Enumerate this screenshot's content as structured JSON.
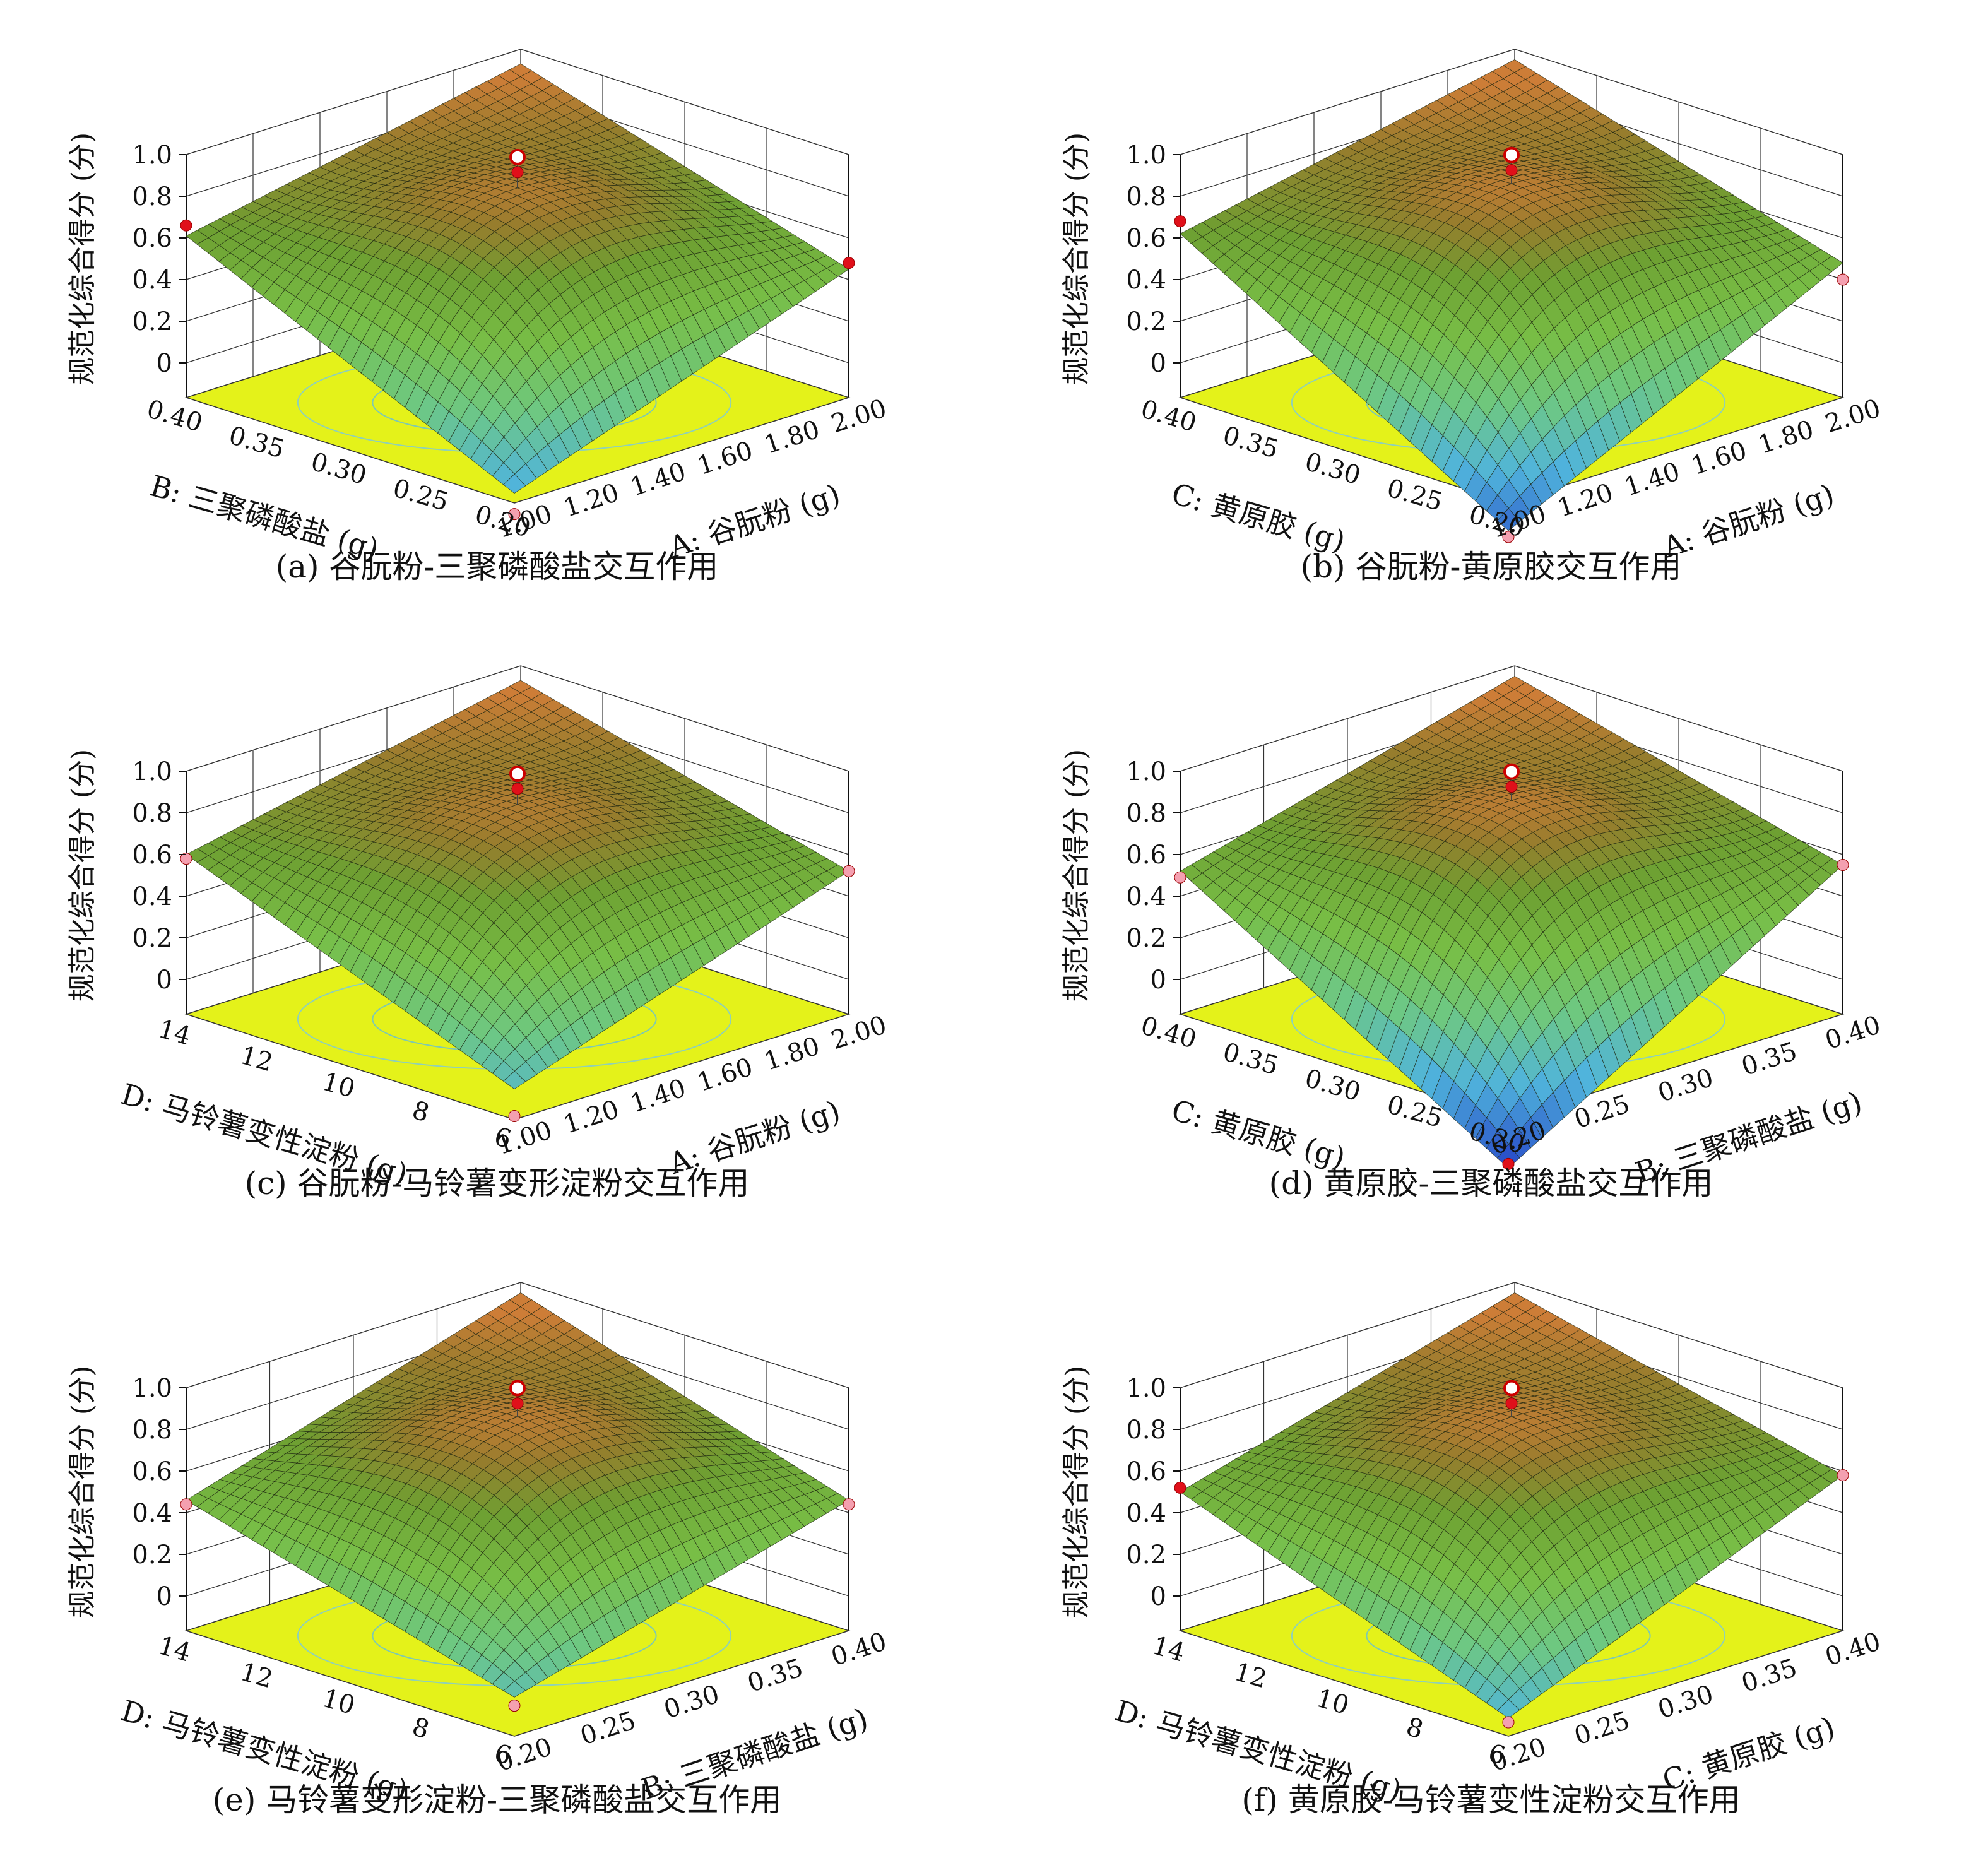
{
  "figure": {
    "panels": [
      {
        "id": "a",
        "caption": "(a) 谷朊粉-三聚磷酸盐交互作用",
        "zlabel": "规范化综合得分 (分)",
        "xlabel": "A: 谷朊粉 (g)",
        "ylabel": "B: 三聚磷酸盐 (g)",
        "xticks": [
          "1.00",
          "1.20",
          "1.40",
          "1.60",
          "1.80",
          "2.00"
        ],
        "yticks": [
          "0.20",
          "0.25",
          "0.30",
          "0.35",
          "0.40"
        ],
        "zticks": [
          "0",
          "0.2",
          "0.4",
          "0.6",
          "0.8",
          "1.0"
        ]
      },
      {
        "id": "b",
        "caption": "(b) 谷朊粉-黄原胶交互作用",
        "zlabel": "规范化综合得分 (分)",
        "xlabel": "A: 谷朊粉 (g)",
        "ylabel": "C: 黄原胶 (g)",
        "xticks": [
          "1.00",
          "1.20",
          "1.40",
          "1.60",
          "1.80",
          "2.00"
        ],
        "yticks": [
          "0.20",
          "0.25",
          "0.30",
          "0.35",
          "0.40"
        ],
        "zticks": [
          "0",
          "0.2",
          "0.4",
          "0.6",
          "0.8",
          "1.0"
        ]
      },
      {
        "id": "c",
        "caption": "(c) 谷朊粉-马铃薯变形淀粉交互作用",
        "zlabel": "规范化综合得分 (分)",
        "xlabel": "A: 谷朊粉 (g)",
        "ylabel": "D: 马铃薯变性淀粉 (g)",
        "xticks": [
          "1.00",
          "1.20",
          "1.40",
          "1.60",
          "1.80",
          "2.00"
        ],
        "yticks": [
          "6",
          "8",
          "10",
          "12",
          "14"
        ],
        "zticks": [
          "0",
          "0.2",
          "0.4",
          "0.6",
          "0.8",
          "1.0"
        ]
      },
      {
        "id": "d",
        "caption": "(d) 黄原胶-三聚磷酸盐交互作用",
        "zlabel": "规范化综合得分 (分)",
        "xlabel": "B: 三聚磷酸盐 (g)",
        "ylabel": "C: 黄原胶 (g)",
        "xticks": [
          "0.20",
          "0.25",
          "0.30",
          "0.35",
          "0.40"
        ],
        "yticks": [
          "0.20",
          "0.25",
          "0.30",
          "0.35",
          "0.40"
        ],
        "zticks": [
          "0",
          "0.2",
          "0.4",
          "0.6",
          "0.8",
          "1.0"
        ]
      },
      {
        "id": "e",
        "caption": "(e) 马铃薯变形淀粉-三聚磷酸盐交互作用",
        "zlabel": "规范化综合得分 (分)",
        "xlabel": "B: 三聚磷酸盐 (g)",
        "ylabel": "D: 马铃薯变性淀粉 (g)",
        "xticks": [
          "0.20",
          "0.25",
          "0.30",
          "0.35",
          "0.40"
        ],
        "yticks": [
          "6",
          "8",
          "10",
          "12",
          "14"
        ],
        "zticks": [
          "0",
          "0.2",
          "0.4",
          "0.6",
          "0.8",
          "1.0"
        ]
      },
      {
        "id": "f",
        "caption": "(f) 黄原胶-马铃薯变性淀粉交互作用",
        "zlabel": "规范化综合得分 (分)",
        "xlabel": "C: 黄原胶 (g)",
        "ylabel": "D: 马铃薯变性淀粉 (g)",
        "xticks": [
          "0.20",
          "0.25",
          "0.30",
          "0.35",
          "0.40"
        ],
        "yticks": [
          "6",
          "8",
          "10",
          "12",
          "14"
        ],
        "zticks": [
          "0",
          "0.2",
          "0.4",
          "0.6",
          "0.8",
          "1.0"
        ]
      }
    ]
  },
  "chart_data": [
    {
      "type": "surface3d",
      "title": "(a) 谷朊粉-三聚磷酸盐交互作用",
      "xlabel": "A: 谷朊粉 (g)",
      "ylabel": "B: 三聚磷酸盐 (g)",
      "zlabel": "规范化综合得分 (分)",
      "xlim": [
        1.0,
        2.0
      ],
      "ylim": [
        0.2,
        0.4
      ],
      "zlim": [
        0,
        1.0
      ],
      "surface": {
        "max": 0.84,
        "corner_near": -0.12,
        "corner_left": 0.61,
        "corner_right": 0.45,
        "corner_back": 0.93
      },
      "design_points": [
        {
          "x": 1.0,
          "y": 0.4,
          "z": 0.66
        },
        {
          "x": 2.0,
          "y": 0.2,
          "z": 0.48
        },
        {
          "x": 1.0,
          "y": 0.2,
          "z": -0.22
        },
        {
          "x": 1.5,
          "y": 0.3,
          "z": 0.97
        }
      ]
    },
    {
      "type": "surface3d",
      "title": "(b) 谷朊粉-黄原胶交互作用",
      "xlabel": "A: 谷朊粉 (g)",
      "ylabel": "C: 黄原胶 (g)",
      "zlabel": "规范化综合得分 (分)",
      "xlim": [
        1.0,
        2.0
      ],
      "ylim": [
        0.2,
        0.4
      ],
      "zlim": [
        0,
        1.0
      ],
      "surface": {
        "max": 0.86,
        "corner_near": -0.3,
        "corner_left": 0.62,
        "corner_right": 0.48,
        "corner_back": 0.95
      },
      "design_points": [
        {
          "x": 1.0,
          "y": 0.4,
          "z": 0.68
        },
        {
          "x": 2.0,
          "y": 0.2,
          "z": 0.4
        },
        {
          "x": 1.0,
          "y": 0.2,
          "z": -0.33
        },
        {
          "x": 1.5,
          "y": 0.3,
          "z": 0.98
        }
      ]
    },
    {
      "type": "surface3d",
      "title": "(c) 谷朊粉-马铃薯变形淀粉交互作用",
      "xlabel": "A: 谷朊粉 (g)",
      "ylabel": "D: 马铃薯变性淀粉 (g)",
      "zlabel": "规范化综合得分 (分)",
      "xlim": [
        1.0,
        2.0
      ],
      "ylim": [
        6,
        14
      ],
      "zlim": [
        0,
        1.0
      ],
      "surface": {
        "max": 0.84,
        "corner_near": -0.02,
        "corner_left": 0.6,
        "corner_right": 0.52,
        "corner_back": 0.93
      },
      "design_points": [
        {
          "x": 1.0,
          "y": 14,
          "z": 0.58
        },
        {
          "x": 2.0,
          "y": 6,
          "z": 0.52
        },
        {
          "x": 1.0,
          "y": 6,
          "z": -0.15
        },
        {
          "x": 1.5,
          "y": 10,
          "z": 0.97
        }
      ]
    },
    {
      "type": "surface3d",
      "title": "(d) 黄原胶-三聚磷酸盐交互作用",
      "xlabel": "B: 三聚磷酸盐 (g)",
      "ylabel": "C: 黄原胶 (g)",
      "zlabel": "规范化综合得分 (分)",
      "xlim": [
        0.2,
        0.4
      ],
      "ylim": [
        0.2,
        0.4
      ],
      "zlim": [
        0,
        1.0
      ],
      "surface": {
        "max": 0.86,
        "corner_near": -0.4,
        "corner_left": 0.52,
        "corner_right": 0.55,
        "corner_back": 0.95
      },
      "design_points": [
        {
          "x": 0.2,
          "y": 0.4,
          "z": 0.49
        },
        {
          "x": 0.4,
          "y": 0.2,
          "z": 0.55
        },
        {
          "x": 0.2,
          "y": 0.2,
          "z": -0.38
        },
        {
          "x": 0.3,
          "y": 0.3,
          "z": 0.98
        }
      ]
    },
    {
      "type": "surface3d",
      "title": "(e) 马铃薯变形淀粉-三聚磷酸盐交互作用",
      "xlabel": "B: 三聚磷酸盐 (g)",
      "ylabel": "D: 马铃薯变性淀粉 (g)",
      "zlabel": "规范化综合得分 (分)",
      "xlim": [
        0.2,
        0.4
      ],
      "ylim": [
        6,
        14
      ],
      "zlim": [
        0,
        1.0
      ],
      "surface": {
        "max": 0.86,
        "corner_near": 0.02,
        "corner_left": 0.46,
        "corner_right": 0.46,
        "corner_back": 0.95
      },
      "design_points": [
        {
          "x": 0.2,
          "y": 14,
          "z": 0.44
        },
        {
          "x": 0.4,
          "y": 6,
          "z": 0.44
        },
        {
          "x": 0.2,
          "y": 6,
          "z": -0.02
        },
        {
          "x": 0.3,
          "y": 10,
          "z": 0.98
        }
      ]
    },
    {
      "type": "surface3d",
      "title": "(f) 黄原胶-马铃薯变性淀粉交互作用",
      "xlabel": "C: 黄原胶 (g)",
      "ylabel": "D: 马铃薯变性淀粉 (g)",
      "zlabel": "规范化综合得分 (分)",
      "xlim": [
        0.2,
        0.4
      ],
      "ylim": [
        6,
        14
      ],
      "zlim": [
        0,
        1.0
      ],
      "surface": {
        "max": 0.86,
        "corner_near": -0.08,
        "corner_left": 0.5,
        "corner_right": 0.58,
        "corner_back": 0.95
      },
      "design_points": [
        {
          "x": 0.2,
          "y": 14,
          "z": 0.52
        },
        {
          "x": 0.4,
          "y": 6,
          "z": 0.58
        },
        {
          "x": 0.2,
          "y": 6,
          "z": -0.1
        },
        {
          "x": 0.3,
          "y": 10,
          "z": 0.98
        }
      ]
    }
  ]
}
